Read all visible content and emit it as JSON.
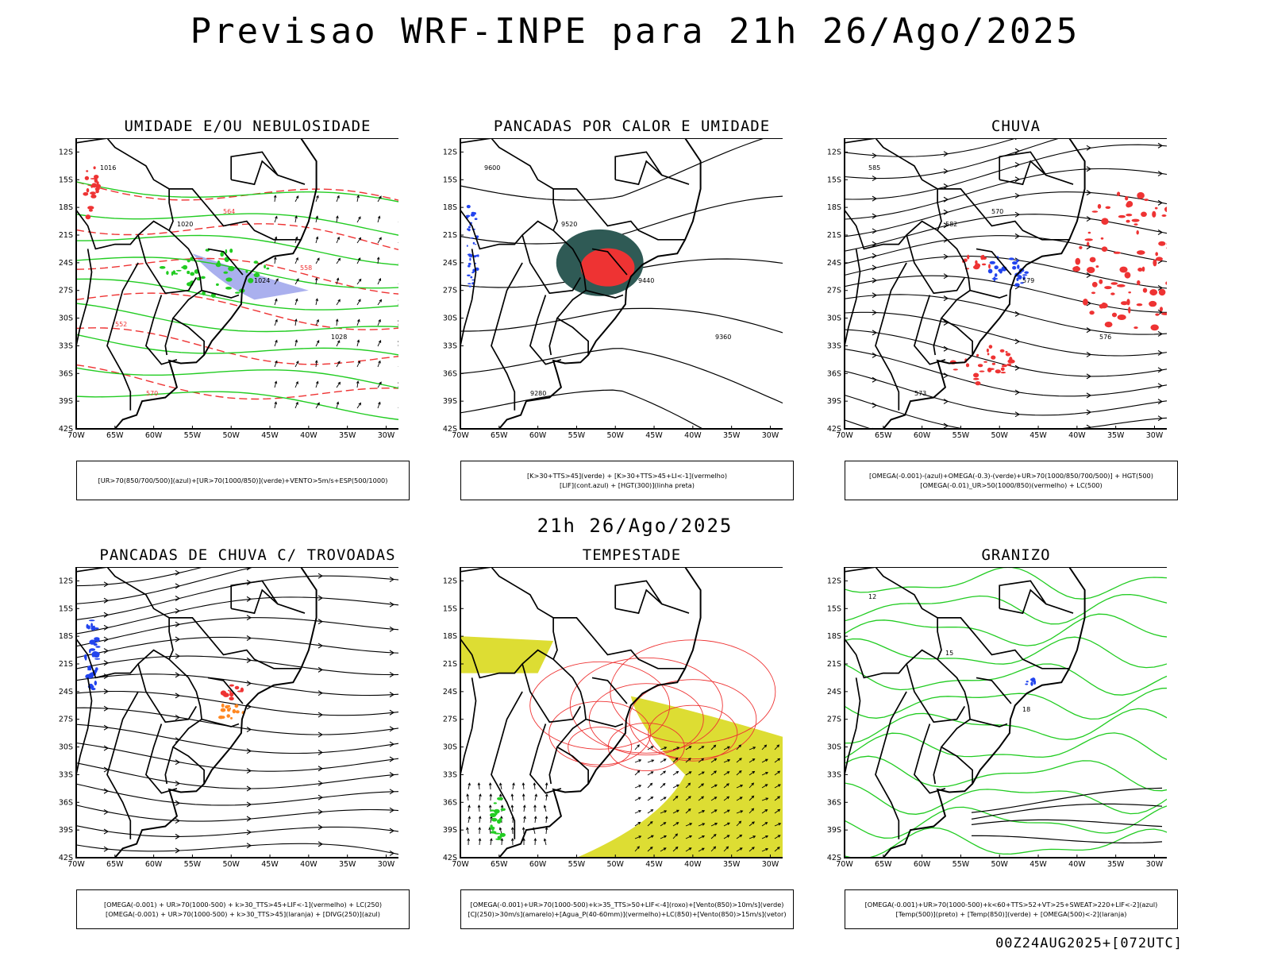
{
  "header": {
    "title": "Previsao WRF-INPE  para 21h 26/Ago/2025"
  },
  "middle": {
    "title": "21h 26/Ago/2025"
  },
  "footer": {
    "stamp": "00Z24AUG2025+[072UTC]"
  },
  "axes": {
    "lat_labels": [
      "12S",
      "15S",
      "18S",
      "21S",
      "24S",
      "27S",
      "30S",
      "33S",
      "36S",
      "39S",
      "42S"
    ],
    "lon_labels": [
      "70W",
      "65W",
      "60W",
      "55W",
      "50W",
      "45W",
      "40W",
      "35W",
      "30W"
    ]
  },
  "colors": {
    "red": "#ee3333",
    "green": "#22cc22",
    "blue": "#2244ee",
    "orange": "#ff8822",
    "yellow": "#dddd33",
    "teal": "#2f5a55",
    "lavender": "#aab0ee"
  },
  "panels": [
    {
      "id": "umidade",
      "title": "UMIDADE E/OU NEBULOSIDADE",
      "caption": [
        "[UR>70(850/700/500)](azul)+[UR>70(1000/850)](verde)+VENTO>5m/s+ESP(500/1000)"
      ],
      "contour_labels": [
        "1016",
        "1020",
        "1024",
        "1028",
        "570",
        "564",
        "558",
        "552"
      ]
    },
    {
      "id": "pancadas",
      "title": "PANCADAS POR CALOR E UMIDADE",
      "caption": [
        "[K>30+TTS>45](verde) + [K>30+TTS>45+LI<-1](vermelho)",
        "[LIF](cont.azul) + [HGT(300)](linha preta)"
      ],
      "contour_labels": [
        "9600",
        "9520",
        "9440",
        "9360",
        "9280"
      ]
    },
    {
      "id": "chuva",
      "title": "CHUVA",
      "caption": [
        "[OMEGA(-0.001)-(azul)+OMEGA(-0.3)-(verde)+UR>70(1000/850/700/500)] + HGT(500)",
        "[OMEGA(-0.01)_UR>50(1000/850)(vermelho) + LC(500)"
      ],
      "contour_labels": [
        "585",
        "582",
        "579",
        "576",
        "573",
        "570"
      ]
    },
    {
      "id": "trovoadas",
      "title": "PANCADAS DE CHUVA C/ TROVOADAS",
      "caption": [
        "[OMEGA(-0.001) + UR>70(1000-500) + k>30_TTS>45+LIF<-1](vermelho) + LC(250)",
        "[OMEGA(-0.001) + UR>70(1000-500) + k>30_TTS>45](laranja) + [DIVG(250)](azul)"
      ],
      "contour_labels": []
    },
    {
      "id": "tempestade",
      "title": "TEMPESTADE",
      "caption": [
        "[OMEGA(-0.001)+UR>70(1000-500)+k>35_TTS>50+LIF<-4](roxo)+[Vento(850)>10m/s](verde)",
        "[CJ(250)>30m/s](amarelo)+[Agua_P(40-60mm)](vermelho)+LC(850)+[Vento(850)>15m/s](vetor)"
      ],
      "contour_labels": []
    },
    {
      "id": "granizo",
      "title": "GRANIZO",
      "caption": [
        "[OMEGA(-0.001)+UR>70(1000-500)+k<60+TTS>52+VT>25+SWEAT>220+LIF<-2](azul)",
        "[Temp(500)](preto) + [Temp(850)](verde) + [OMEGA(500)<-2](laranja)"
      ],
      "contour_labels": [
        "12",
        "15",
        "18"
      ]
    }
  ]
}
